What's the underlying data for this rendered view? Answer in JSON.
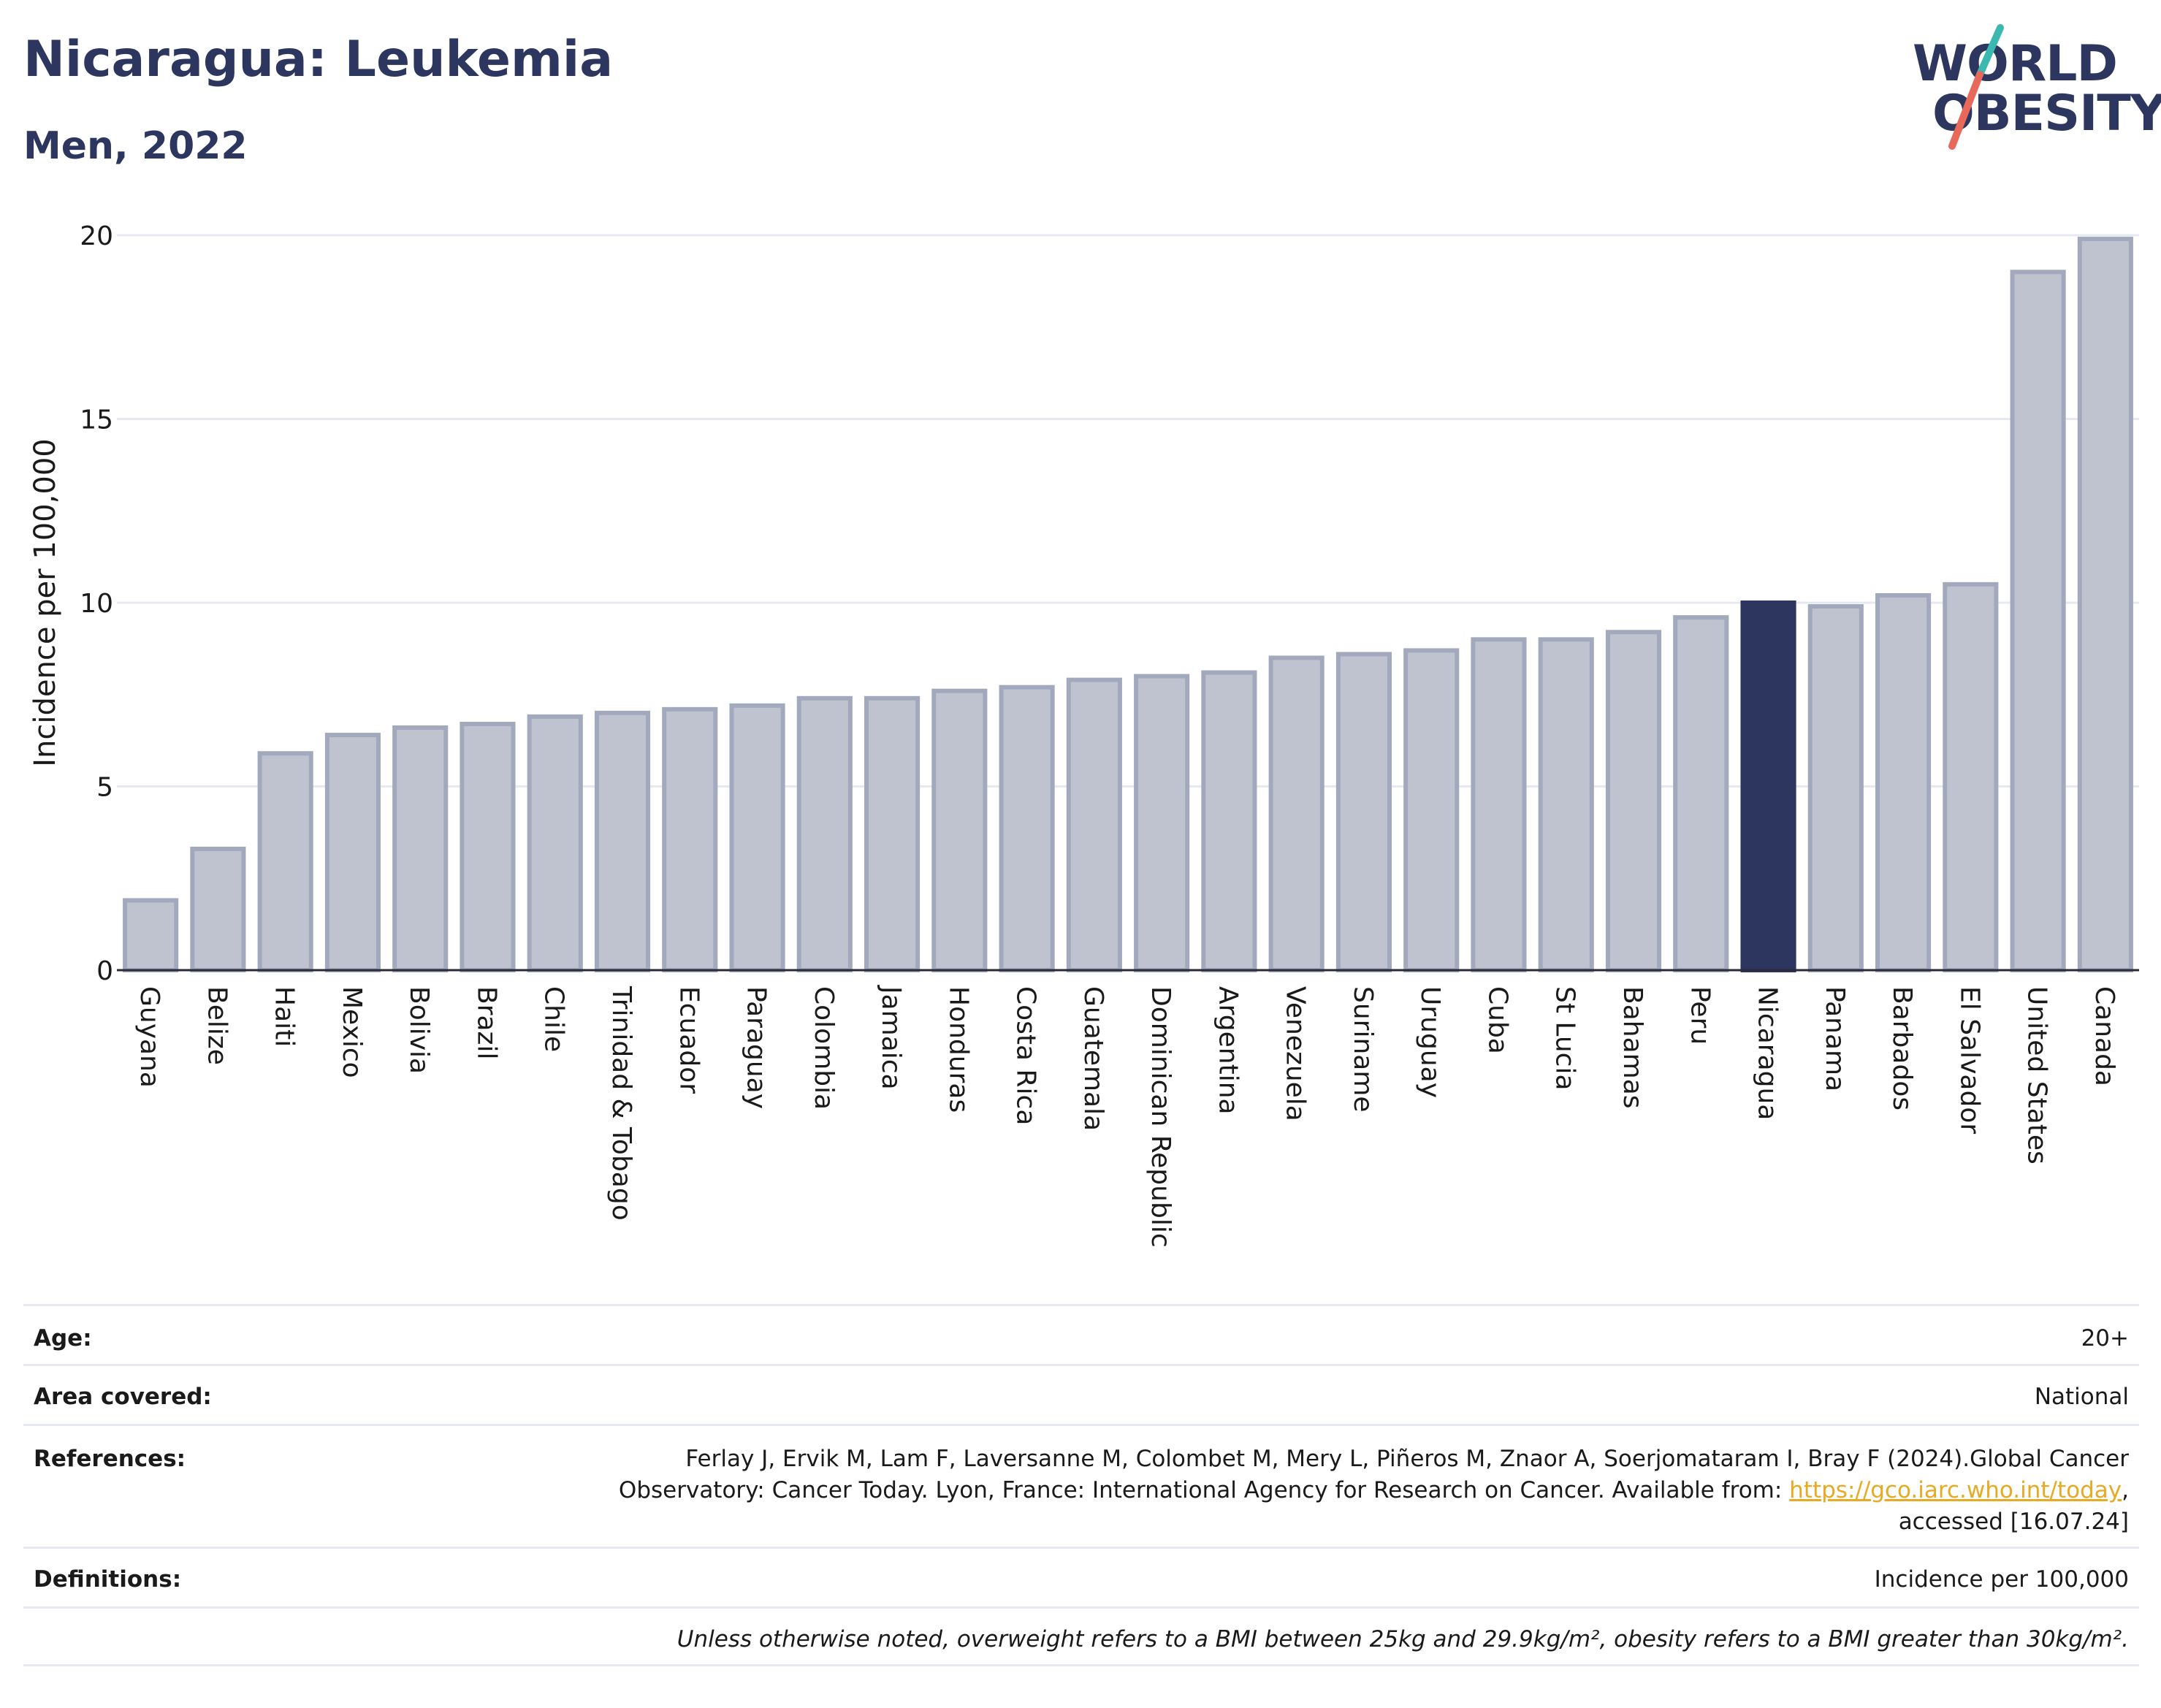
{
  "header": {
    "title": "Nicaragua: Leukemia",
    "subtitle": "Men, 2022"
  },
  "logo": {
    "line1": "WORLD",
    "line2": "OBESITY"
  },
  "colors": {
    "highlight": "#2d365f",
    "bar": "#bfc3d0",
    "bar_edge": "#a3a9bd",
    "logo_slash_top": "#3bb8b0",
    "logo_slash_bottom": "#e8685a"
  },
  "chart_data": {
    "type": "bar",
    "ylabel": "Incidence per 100,000",
    "ylim": [
      0,
      20
    ],
    "yticks": [
      0,
      5,
      10,
      15,
      20
    ],
    "grid": true,
    "highlight": "Nicaragua",
    "categories": [
      "Guyana",
      "Belize",
      "Haiti",
      "Mexico",
      "Bolivia",
      "Brazil",
      "Chile",
      "Trinidad & Tobago",
      "Ecuador",
      "Paraguay",
      "Colombia",
      "Jamaica",
      "Honduras",
      "Costa Rica",
      "Guatemala",
      "Dominican Republic",
      "Argentina",
      "Venezuela",
      "Suriname",
      "Uruguay",
      "Cuba",
      "St Lucia",
      "Bahamas",
      "Peru",
      "Nicaragua",
      "Panama",
      "Barbados",
      "El Salvador",
      "United States",
      "Canada"
    ],
    "values": [
      1.9,
      3.3,
      5.9,
      6.4,
      6.6,
      6.7,
      6.9,
      7.0,
      7.1,
      7.2,
      7.4,
      7.4,
      7.6,
      7.7,
      7.9,
      8.0,
      8.1,
      8.5,
      8.6,
      8.7,
      9.0,
      9.0,
      9.2,
      9.6,
      10.0,
      9.9,
      10.2,
      10.5,
      19.0,
      19.9
    ]
  },
  "info": {
    "age_label": "Age:",
    "age_value": "20+",
    "area_label": "Area covered:",
    "area_value": "National",
    "references_label": "References:",
    "references_line1": "Ferlay J, Ervik M, Lam F, Laversanne M, Colombet M, Mery L, Piñeros M, Znaor A, Soerjomataram I, Bray F (2024).Global Cancer",
    "references_line2_pre": "Observatory: Cancer Today. Lyon, France: International Agency for Research on Cancer. Available from: ",
    "references_link": "https://gco.iarc.who.int/today",
    "references_line2_post": ",",
    "references_line3": "accessed [16.07.24]",
    "definitions_label": "Definitions:",
    "definitions_value": "Incidence per 100,000",
    "note": "Unless otherwise noted, overweight refers to a BMI between 25kg and 29.9kg/m², obesity refers to a BMI greater than 30kg/m²."
  }
}
